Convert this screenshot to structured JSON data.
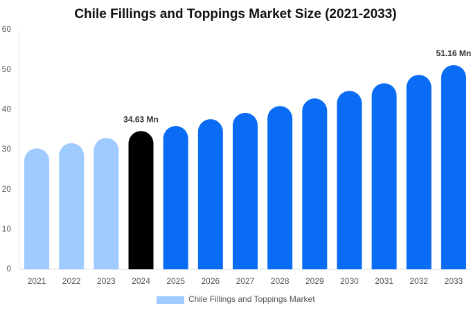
{
  "chart_data": {
    "type": "bar",
    "title": "Chile Fillings and Toppings Market Size (2021-2033)",
    "categories": [
      "2021",
      "2022",
      "2023",
      "2024",
      "2025",
      "2026",
      "2027",
      "2028",
      "2029",
      "2030",
      "2031",
      "2032",
      "2033"
    ],
    "series": [
      {
        "name": "Chile Fillings and Toppings Market",
        "color": "#a0cbff",
        "values": [
          30.3,
          31.6,
          32.9,
          34.63,
          35.9,
          37.6,
          39.2,
          40.9,
          42.8,
          44.7,
          46.6,
          48.7,
          51.16
        ],
        "value_labels": [
          null,
          null,
          null,
          "34.63 Mn",
          null,
          null,
          null,
          null,
          null,
          null,
          null,
          null,
          "51.16 Mn"
        ],
        "colors": [
          "#a0cbff",
          "#a0cbff",
          "#a0cbff",
          "#000000",
          "#0a6cf5",
          "#0a6cf5",
          "#0a6cf5",
          "#0a6cf5",
          "#0a6cf5",
          "#0a6cf5",
          "#0a6cf5",
          "#0a6cf5",
          "#0a6cf5"
        ]
      }
    ],
    "ylim": [
      0,
      60
    ],
    "yticks": [
      0,
      10,
      20,
      30,
      40,
      50,
      60
    ],
    "grid": false
  }
}
